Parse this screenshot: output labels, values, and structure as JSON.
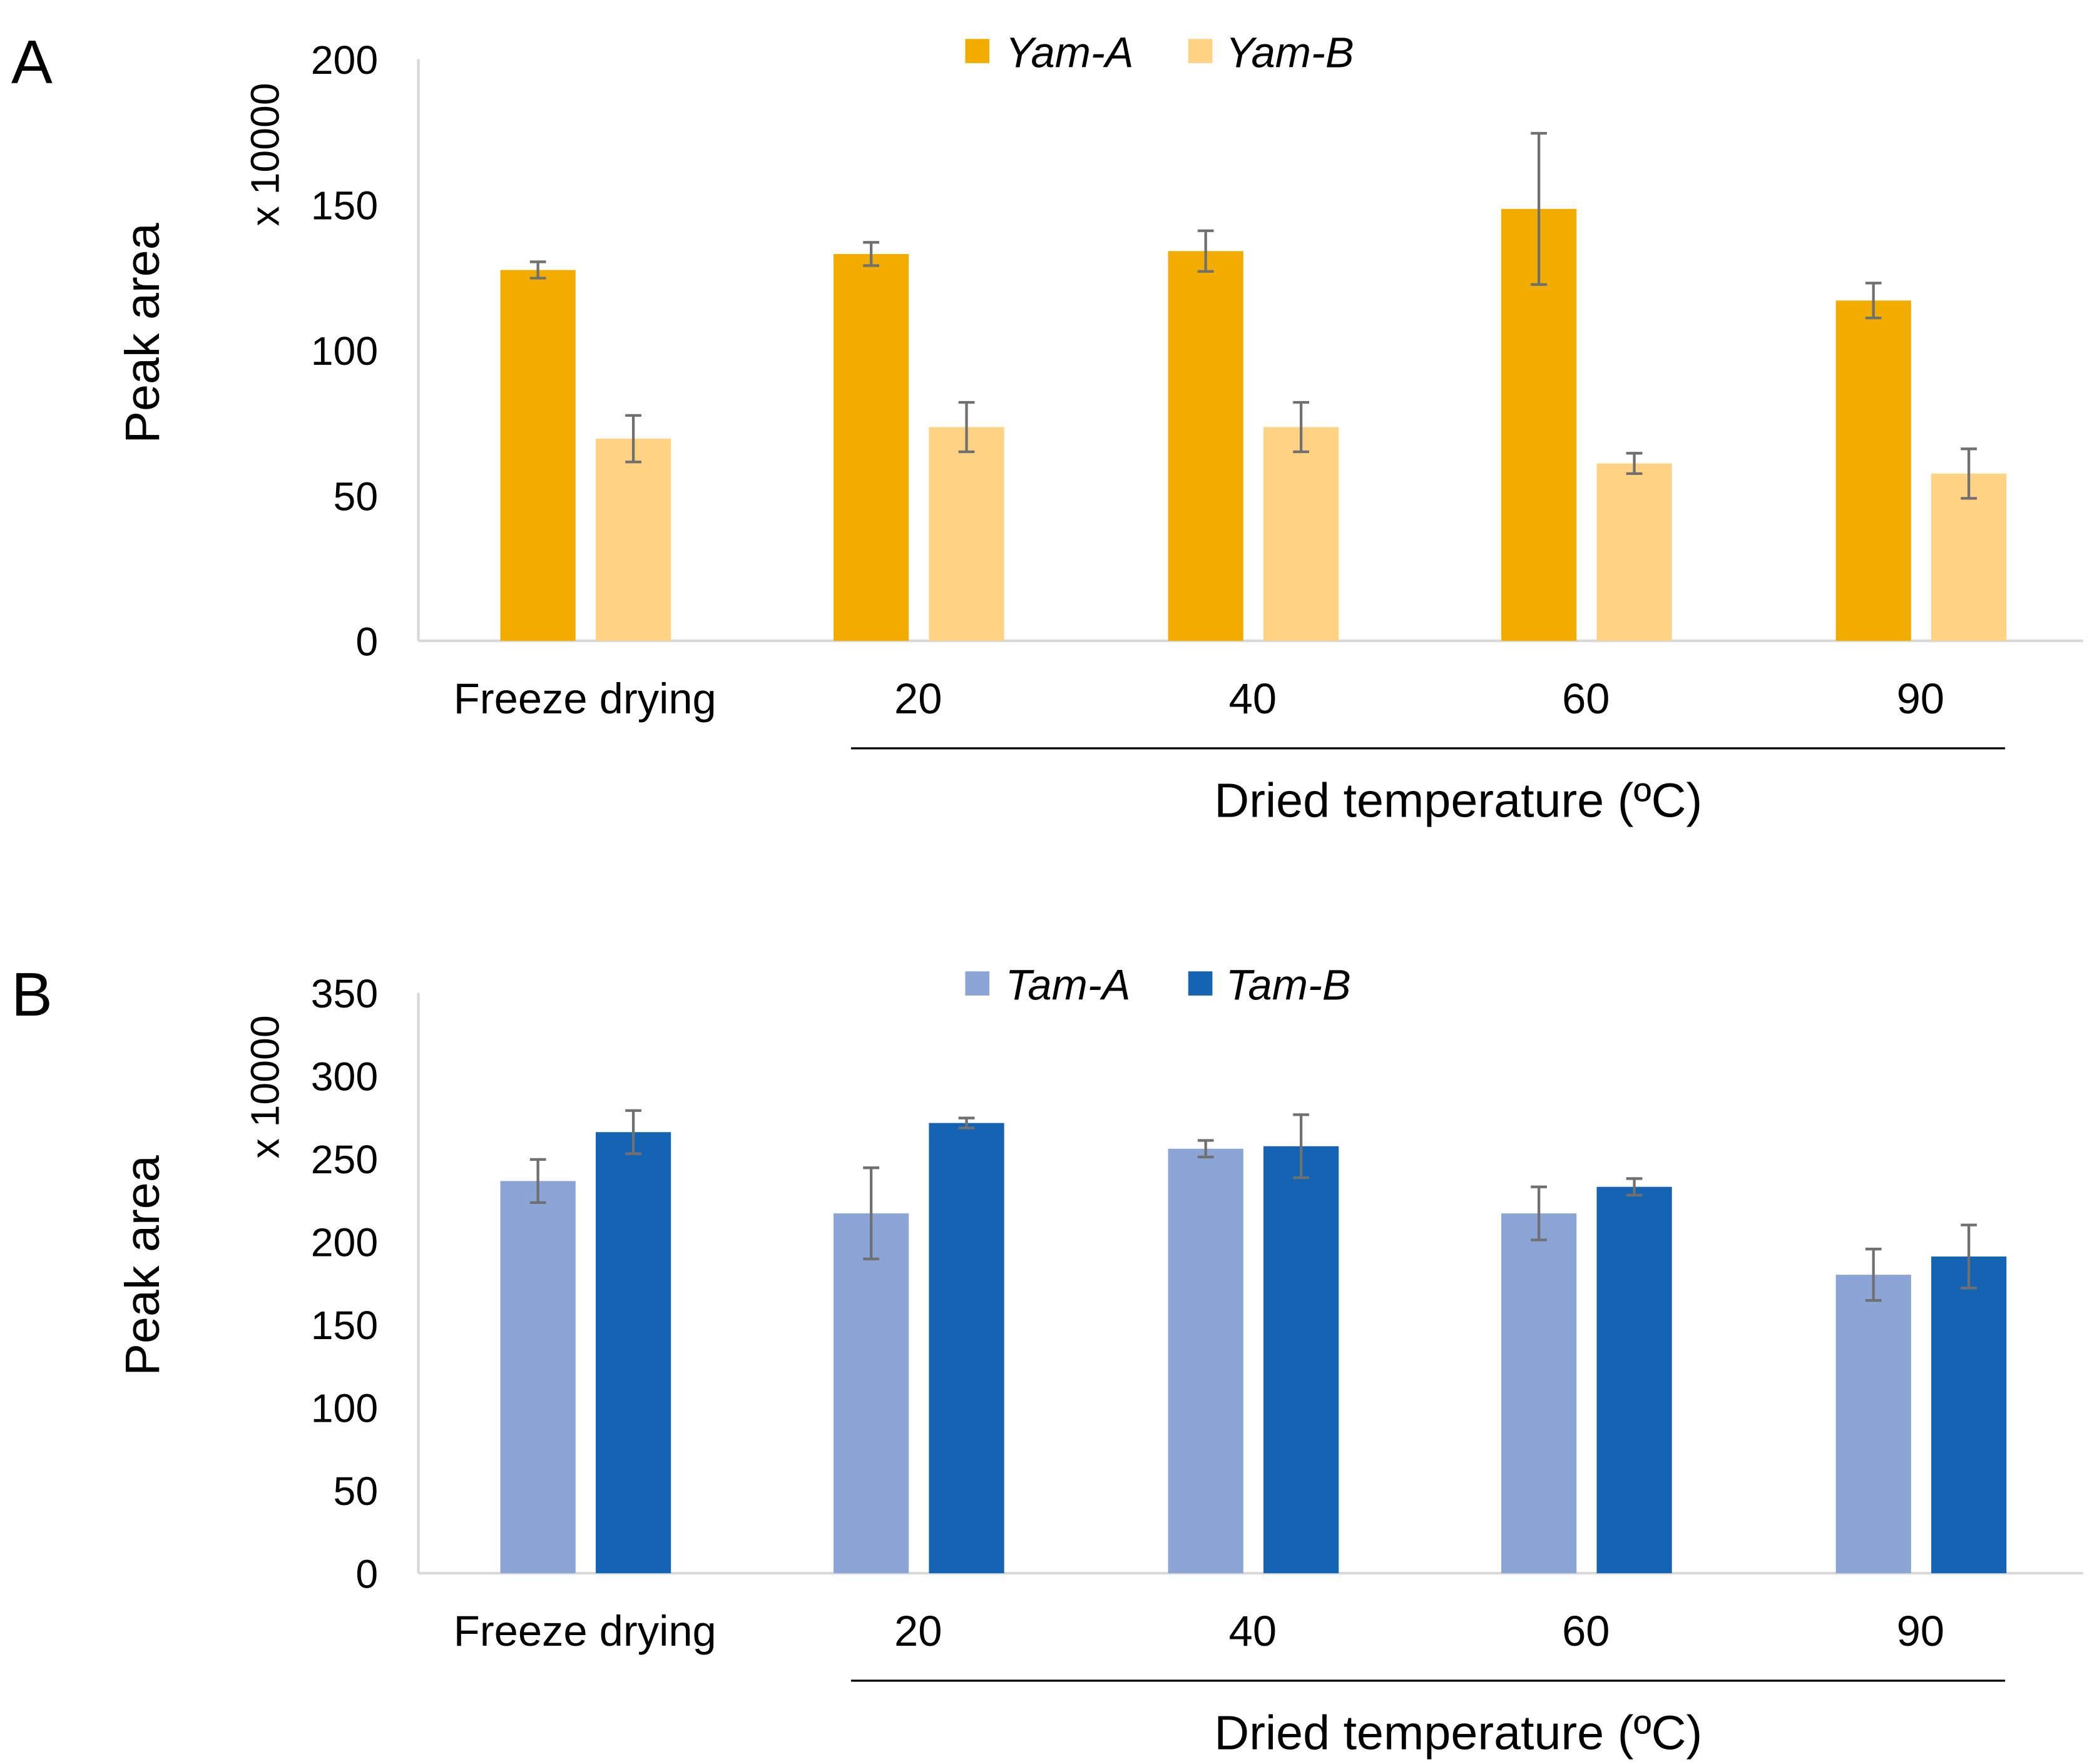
{
  "chart_data": [
    {
      "type": "bar",
      "panel_label": "A",
      "categories": [
        "Freeze drying",
        "20",
        "40",
        "60",
        "90"
      ],
      "xlabel": "Dried temperature (ºC)",
      "ylabel": "Peak area",
      "yunit": "x 10000",
      "ylim": [
        0,
        200
      ],
      "yticks": [
        "0",
        "50",
        "100",
        "150",
        "200"
      ],
      "legend_position": "top-center",
      "series": [
        {
          "name": "Yam-A",
          "color": "#F3AC00",
          "values": [
            127.5,
            133,
            134,
            148.5,
            117
          ],
          "errors": [
            2.8,
            4,
            7,
            26,
            6
          ]
        },
        {
          "name": "Yam-B",
          "color": "#FFD383",
          "values": [
            69.5,
            73.5,
            73.5,
            61,
            57.5
          ],
          "errors": [
            8,
            8.5,
            8.5,
            3.5,
            8.5
          ]
        }
      ]
    },
    {
      "type": "bar",
      "panel_label": "B",
      "categories": [
        "Freeze drying",
        "20",
        "40",
        "60",
        "90"
      ],
      "xlabel": "Dried temperature (ºC)",
      "ylabel": "Peak area",
      "yunit": "x 10000",
      "ylim": [
        0,
        350
      ],
      "yticks": [
        "0",
        "50",
        "100",
        "150",
        "200",
        "250",
        "300",
        "350"
      ],
      "legend_position": "top-center",
      "series": [
        {
          "name": "Tam-A",
          "color": "#8BA5D7",
          "values": [
            236.5,
            217,
            256,
            217,
            180
          ],
          "errors": [
            13,
            27.5,
            5,
            16,
            15.5
          ]
        },
        {
          "name": "Tam-B",
          "color": "#1464B3",
          "values": [
            266,
            271.5,
            257.5,
            233,
            191
          ],
          "errors": [
            13,
            3,
            19,
            5,
            19
          ]
        }
      ]
    }
  ]
}
